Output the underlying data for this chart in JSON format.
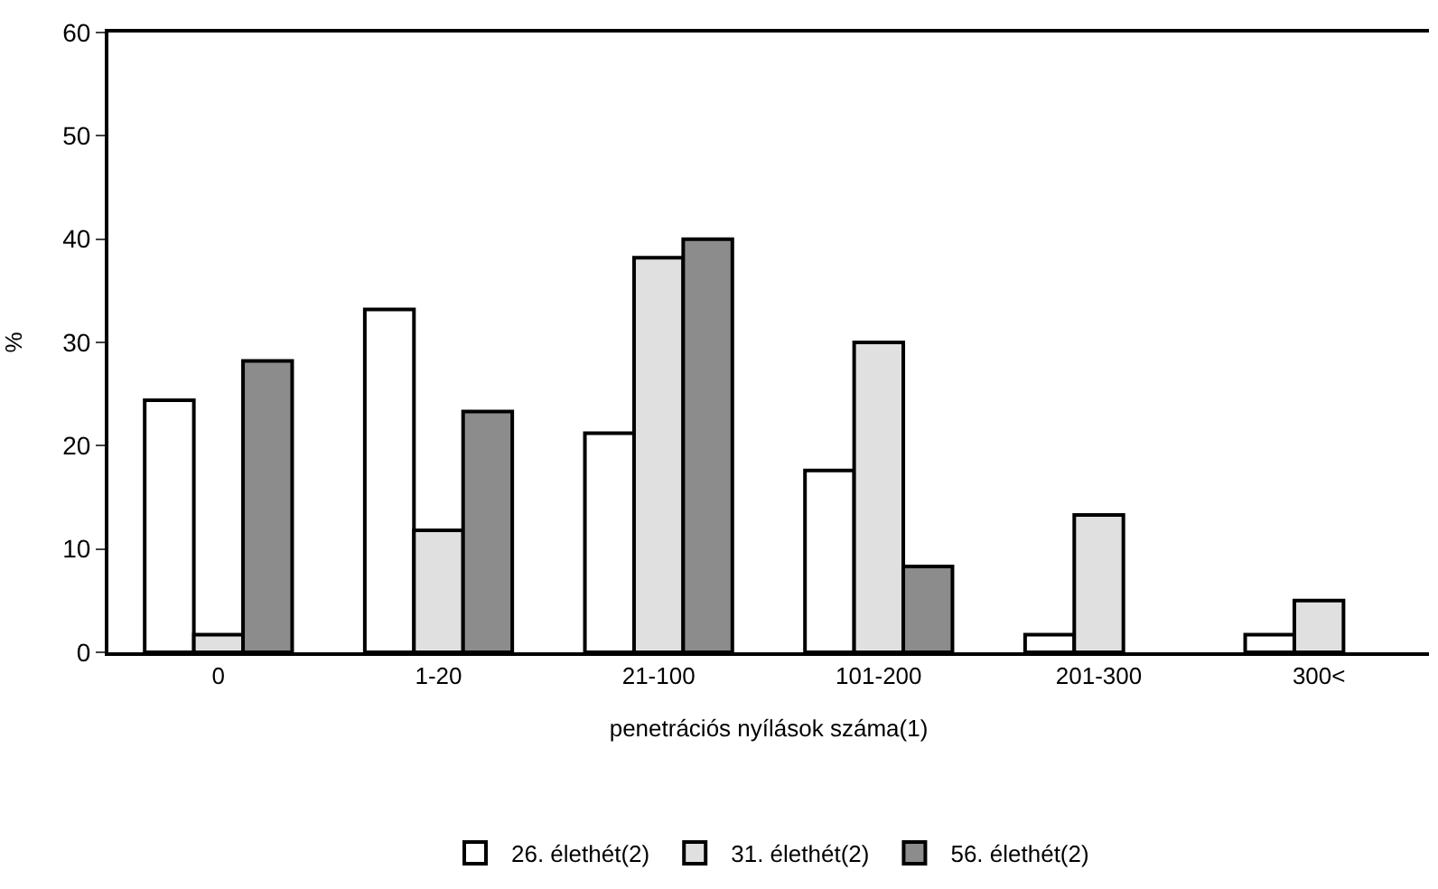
{
  "chart_data": {
    "type": "bar",
    "xlabel": "penetrációs nyílások száma(1)",
    "ylabel": "%",
    "categories": [
      "0",
      "1-20",
      "21-100",
      "101-200",
      "201-300",
      "300<"
    ],
    "series": [
      {
        "name": "26. élethét(2)",
        "color": "#ffffff",
        "values": [
          24.4,
          33.2,
          21.2,
          17.6,
          1.7,
          1.7
        ]
      },
      {
        "name": "31. élethét(2)",
        "color": "#e0e0e0",
        "values": [
          1.7,
          11.8,
          38.2,
          30.0,
          13.3,
          5.0
        ]
      },
      {
        "name": "56. élethét(2)",
        "color": "#8c8c8c",
        "values": [
          28.2,
          23.3,
          40.0,
          8.3,
          null,
          null
        ]
      }
    ],
    "ylim": [
      0,
      60
    ],
    "yticks": [
      0,
      10,
      20,
      30,
      40,
      50,
      60
    ],
    "grid": false,
    "legend": "bottom"
  }
}
